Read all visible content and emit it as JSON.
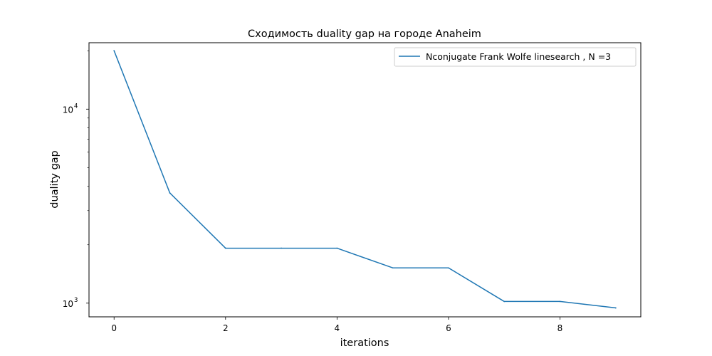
{
  "chart_data": {
    "type": "line",
    "title": "Сходимость duality gap на городе Anaheim",
    "xlabel": "iterations",
    "ylabel": "duality gap",
    "xscale": "linear",
    "yscale": "log",
    "xlim": [
      -0.45,
      9.45
    ],
    "ylim": [
      850,
      22000
    ],
    "grid": false,
    "legend_position": "upper right",
    "x_ticks": [
      0,
      2,
      4,
      6,
      8
    ],
    "x_tick_labels": [
      "0",
      "2",
      "4",
      "6",
      "8"
    ],
    "y_major_ticks": [
      1000,
      10000
    ],
    "y_major_tick_base": [
      "10",
      "10"
    ],
    "y_major_tick_exp": [
      "3",
      "4"
    ],
    "y_minor_ticks": [
      2000,
      3000,
      4000,
      5000,
      6000,
      7000,
      8000,
      9000,
      20000
    ],
    "x": [
      0,
      1,
      2,
      3,
      4,
      5,
      6,
      7,
      8,
      9
    ],
    "series": [
      {
        "name": "Nconjugate Frank Wolfe linesearch , N =3",
        "color": "#1f77b4",
        "values": [
          20000,
          3700,
          1920,
          1920,
          1920,
          1520,
          1520,
          1020,
          1020,
          945
        ]
      }
    ]
  }
}
